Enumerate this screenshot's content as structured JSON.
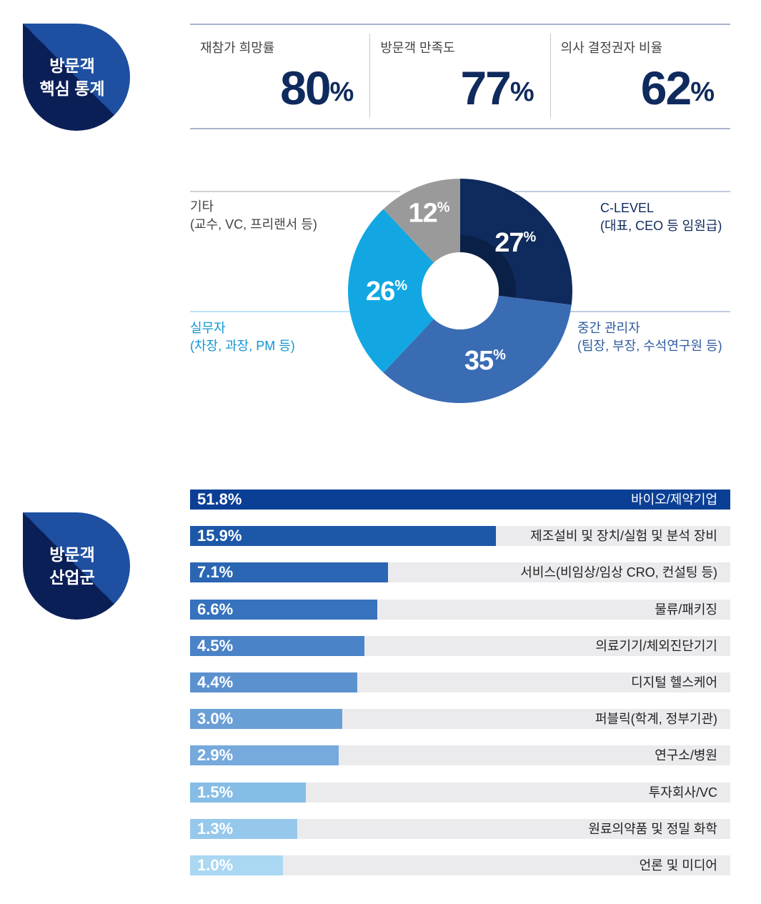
{
  "badges": [
    {
      "text": "방문객\n핵심 통계"
    },
    {
      "text": "방문객\n산업군"
    }
  ],
  "kpis": [
    {
      "label": "재참가 희망률",
      "value": "80",
      "unit": "%"
    },
    {
      "label": "방문객 만족도",
      "value": "77",
      "unit": "%"
    },
    {
      "label": "의사 결정권자 비율",
      "value": "62",
      "unit": "%"
    }
  ],
  "chart_data": [
    {
      "type": "pie",
      "slices": [
        {
          "label": "C-LEVEL\n(대표, CEO 등 임원급)",
          "value": 27,
          "color": "#0f2a5c",
          "label_color": "#0f2a5c"
        },
        {
          "label": "중간 관리자\n(팀장, 부장, 수석연구원 등)",
          "value": 35,
          "color": "#3a6cb4",
          "label_color": "#2f5b9e"
        },
        {
          "label": "실무자\n(차장, 과장, PM 등)",
          "value": 26,
          "color": "#12a7e3",
          "label_color": "#1296d2"
        },
        {
          "label": "기타\n(교수, VC, 프리랜서 등)",
          "value": 12,
          "color": "#9a9a9a",
          "label_color": "#444444"
        }
      ],
      "unit": "%"
    },
    {
      "type": "bar",
      "orientation": "horizontal",
      "unit": "%",
      "xlim": [
        0,
        51.8
      ],
      "categories": [
        "바이오/제약기업",
        "제조설비 및 장치/실험 및 분석 장비",
        "서비스(비임상/임상 CRO, 컨설팅 등)",
        "물류/패키징",
        "의료기기/체외진단기기",
        "디지털 헬스케어",
        "퍼블릭(학계, 정부기관)",
        "연구소/병원",
        "투자회사/VC",
        "원료의약품 및 정밀 화학",
        "언론 및 미디어"
      ],
      "values": [
        51.8,
        15.9,
        7.1,
        6.6,
        4.5,
        4.4,
        3.0,
        2.9,
        1.5,
        1.3,
        1.0
      ],
      "value_labels": [
        "51.8%",
        "15.9%",
        "7.1%",
        "6.6%",
        "4.5%",
        "4.4%",
        "3.0%",
        "2.9%",
        "1.5%",
        "1.3%",
        "1.0%"
      ],
      "colors": [
        "#0b3f95",
        "#1d58a8",
        "#2a66b3",
        "#3672bd",
        "#4a83c7",
        "#5b91cf",
        "#6a9fd6",
        "#76a9dc",
        "#85bde6",
        "#96c8ec",
        "#aad7f2"
      ],
      "track_color": "#ebebee"
    }
  ]
}
